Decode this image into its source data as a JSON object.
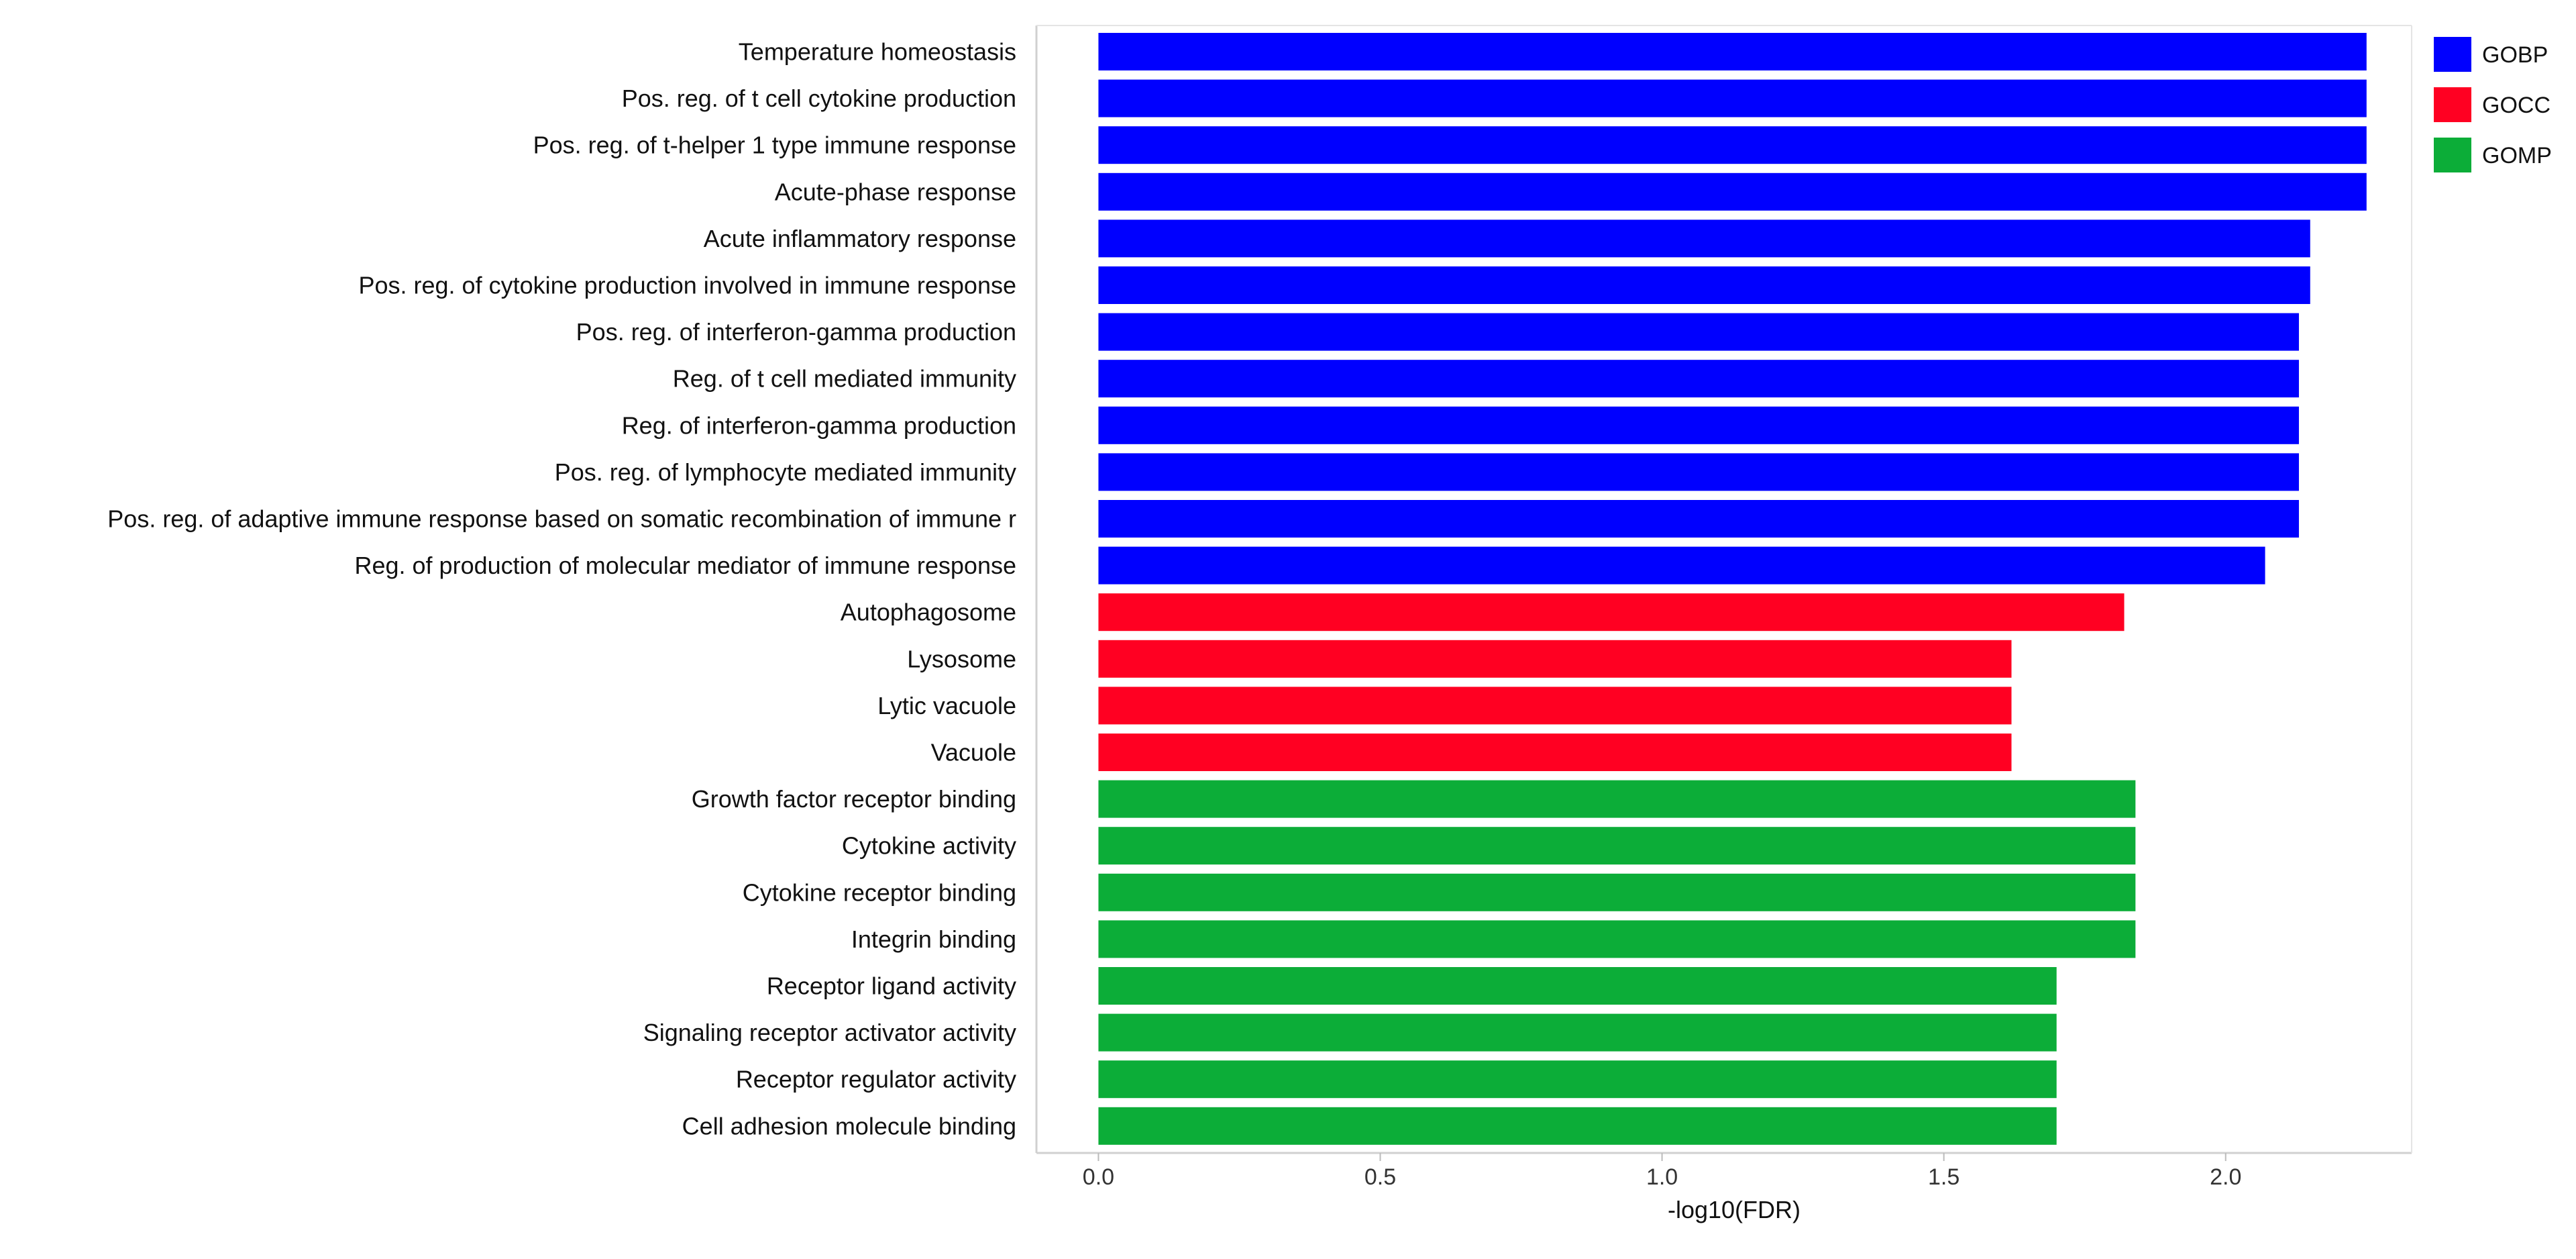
{
  "chart_data": {
    "type": "bar",
    "orientation": "horizontal",
    "title": "",
    "xlabel": "-log10(FDR)",
    "ylabel": "",
    "xlim": [
      -0.11,
      2.33
    ],
    "xticks": [
      0.0,
      0.5,
      1.0,
      1.5,
      2.0
    ],
    "xtick_labels": [
      "0.0",
      "0.5",
      "1.0",
      "1.5",
      "2.0"
    ],
    "grid": false,
    "legend_position": "top-right",
    "groups": [
      {
        "name": "GOBP",
        "color": "#0000ff"
      },
      {
        "name": "GOCC",
        "color": "#ff0022"
      },
      {
        "name": "GOMP",
        "color": "#0cad38"
      }
    ],
    "bars": [
      {
        "label": "Temperature homeostasis",
        "value": 2.25,
        "group": "GOBP"
      },
      {
        "label": "Pos. reg. of t cell cytokine production",
        "value": 2.25,
        "group": "GOBP"
      },
      {
        "label": "Pos. reg. of t-helper 1 type immune response",
        "value": 2.25,
        "group": "GOBP"
      },
      {
        "label": "Acute-phase response",
        "value": 2.25,
        "group": "GOBP"
      },
      {
        "label": "Acute inflammatory response",
        "value": 2.15,
        "group": "GOBP"
      },
      {
        "label": "Pos. reg. of cytokine production involved in immune response",
        "value": 2.15,
        "group": "GOBP"
      },
      {
        "label": "Pos. reg. of interferon-gamma production",
        "value": 2.13,
        "group": "GOBP"
      },
      {
        "label": "Reg. of t cell mediated immunity",
        "value": 2.13,
        "group": "GOBP"
      },
      {
        "label": "Reg. of interferon-gamma production",
        "value": 2.13,
        "group": "GOBP"
      },
      {
        "label": "Pos. reg. of lymphocyte mediated immunity",
        "value": 2.13,
        "group": "GOBP"
      },
      {
        "label": "Pos. reg. of adaptive immune response based on somatic recombination of immune r",
        "value": 2.13,
        "group": "GOBP"
      },
      {
        "label": "Reg. of production of molecular mediator of immune response",
        "value": 2.07,
        "group": "GOBP"
      },
      {
        "label": "Autophagosome",
        "value": 1.82,
        "group": "GOCC"
      },
      {
        "label": "Lysosome",
        "value": 1.62,
        "group": "GOCC"
      },
      {
        "label": "Lytic vacuole",
        "value": 1.62,
        "group": "GOCC"
      },
      {
        "label": "Vacuole",
        "value": 1.62,
        "group": "GOCC"
      },
      {
        "label": "Growth factor receptor binding",
        "value": 1.84,
        "group": "GOMP"
      },
      {
        "label": "Cytokine activity",
        "value": 1.84,
        "group": "GOMP"
      },
      {
        "label": "Cytokine receptor binding",
        "value": 1.84,
        "group": "GOMP"
      },
      {
        "label": "Integrin binding",
        "value": 1.84,
        "group": "GOMP"
      },
      {
        "label": "Receptor ligand activity",
        "value": 1.7,
        "group": "GOMP"
      },
      {
        "label": "Signaling receptor activator activity",
        "value": 1.7,
        "group": "GOMP"
      },
      {
        "label": "Receptor regulator activity",
        "value": 1.7,
        "group": "GOMP"
      },
      {
        "label": "Cell adhesion molecule binding",
        "value": 1.7,
        "group": "GOMP"
      }
    ]
  }
}
